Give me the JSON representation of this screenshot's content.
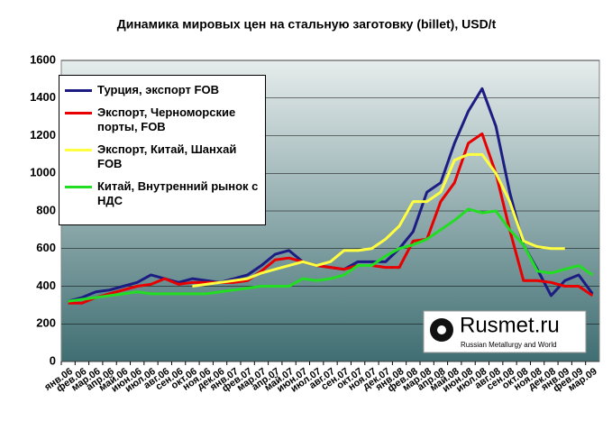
{
  "chart_data": {
    "type": "line",
    "title": "Динамика мировых цен на стальную заготовку (billet), USD/t",
    "categories": [
      "янв.06",
      "фев.06",
      "мар.06",
      "апр.06",
      "май.06",
      "июн.06",
      "июл.06",
      "авг.06",
      "сен.06",
      "окт.06",
      "ноя.06",
      "дек.06",
      "янв.07",
      "фев.07",
      "мар.07",
      "апр.07",
      "май.07",
      "июн.07",
      "июл.07",
      "авг.07",
      "сен.07",
      "окт.07",
      "ноя.07",
      "дек.07",
      "янв.08",
      "фев.08",
      "мар.08",
      "апр.08",
      "май.08",
      "июн.08",
      "июл.08",
      "авг.08",
      "сен.08",
      "окт.08",
      "ноя.08",
      "дек.08",
      "янв.09",
      "фев.09",
      "мар.09"
    ],
    "series": [
      {
        "name": "Турция, экспорт FOB",
        "color": "#1c1c82",
        "values": [
          320,
          340,
          370,
          380,
          400,
          420,
          460,
          440,
          420,
          440,
          430,
          420,
          440,
          460,
          510,
          570,
          590,
          530,
          510,
          500,
          490,
          530,
          530,
          530,
          600,
          690,
          900,
          950,
          1160,
          1330,
          1450,
          1250,
          900,
          620,
          490,
          350,
          430,
          460,
          360
        ]
      },
      {
        "name": "Экспорт, Черноморские порты, FOB",
        "color": "#e80000",
        "values": [
          310,
          310,
          340,
          360,
          380,
          400,
          410,
          440,
          410,
          420,
          420,
          420,
          420,
          430,
          480,
          540,
          550,
          530,
          510,
          500,
          490,
          510,
          510,
          500,
          500,
          640,
          650,
          850,
          950,
          1160,
          1210,
          1000,
          700,
          430,
          430,
          420,
          400,
          400,
          350
        ]
      },
      {
        "name": "Экспорт, Китай, Шанхай FOB",
        "color": "#ffff40",
        "values": [
          null,
          null,
          null,
          null,
          null,
          null,
          null,
          null,
          null,
          400,
          410,
          420,
          430,
          440,
          470,
          490,
          510,
          530,
          510,
          530,
          590,
          590,
          600,
          650,
          720,
          850,
          850,
          900,
          1070,
          1100,
          1100,
          1000,
          850,
          640,
          610,
          600,
          600,
          null,
          null
        ]
      },
      {
        "name": "Китай, Внутренний рынок с НДС",
        "color": "#22dd22",
        "values": [
          320,
          330,
          340,
          350,
          360,
          370,
          360,
          360,
          360,
          360,
          360,
          370,
          380,
          390,
          400,
          400,
          400,
          440,
          430,
          440,
          460,
          510,
          510,
          560,
          600,
          620,
          650,
          700,
          750,
          810,
          790,
          800,
          700,
          620,
          480,
          470,
          490,
          510,
          460
        ]
      }
    ],
    "ylim": [
      0,
      1600
    ],
    "yticks": [
      0,
      200,
      400,
      600,
      800,
      1000,
      1200,
      1400,
      1600
    ],
    "grid": true,
    "legend": "upper left"
  },
  "logo": {
    "title": "Rusmet.ru",
    "subtitle": "Russian Metallurgy and World"
  }
}
